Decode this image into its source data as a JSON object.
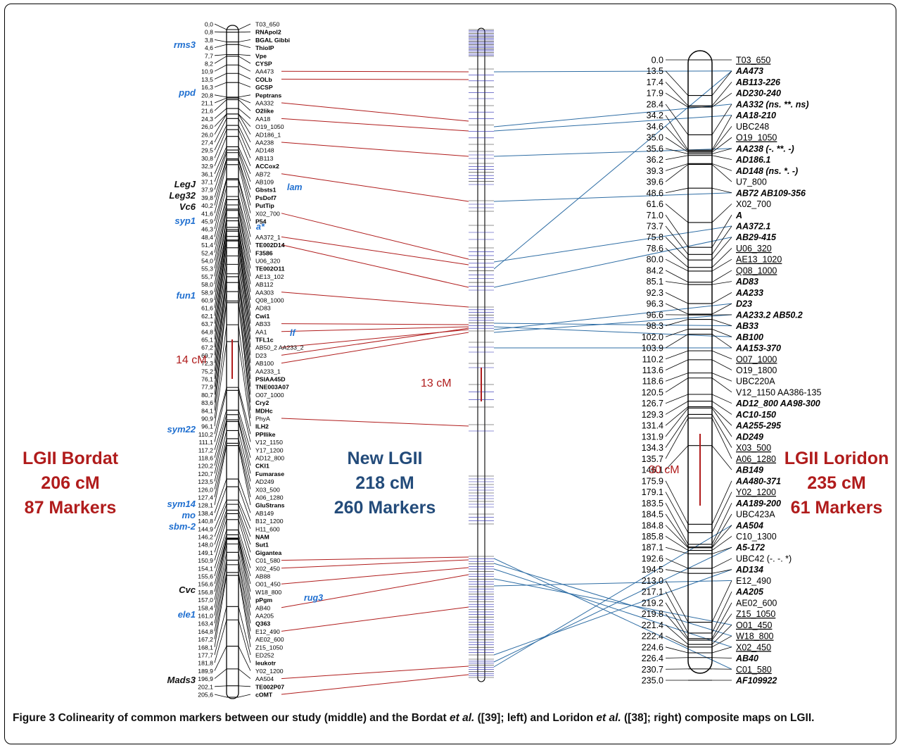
{
  "figure_label": "Figure 3",
  "caption_parts": {
    "a": "Colinearity of common markers between our study (middle) and the Bordat ",
    "a_it": "et al.",
    "b": " ([39]; left) and Loridon ",
    "b_it": "et al.",
    "c": " ([38]; right) composite maps on LGII."
  },
  "titles": {
    "left": [
      "LGII Bordat",
      "206 cM",
      "87 Markers"
    ],
    "middle": [
      "New LGII",
      "218 cM",
      "260 Markers"
    ],
    "right": [
      "LGII Loridon",
      "235 cM",
      "61 Markers"
    ]
  },
  "gaps": {
    "left": "14 cM",
    "middle": "13 cM",
    "right": "30 cM"
  },
  "colors": {
    "red_link": "#b01c1c",
    "blue_link": "#2e6da4",
    "gene": "#1f6fd0",
    "gap": "#b01c1c"
  },
  "bordat": {
    "loci": [
      [
        "0,0",
        "T03_650",
        0
      ],
      [
        "0,8",
        "RNApol2",
        1
      ],
      [
        "3,8",
        "BGAL Gibbi",
        1
      ],
      [
        "4,6",
        "ThiolP",
        1
      ],
      [
        "7,7",
        "Vpe",
        1
      ],
      [
        "8,2",
        "CYSP",
        1
      ],
      [
        "10,9",
        "AA473",
        0
      ],
      [
        "13,5",
        "COLb",
        1
      ],
      [
        "16,3",
        "GCSP",
        1
      ],
      [
        "20,8",
        "Peptrans",
        1
      ],
      [
        "21,1",
        "AA332",
        0
      ],
      [
        "21,6",
        "O2like",
        1
      ],
      [
        "24,3",
        "AA18",
        0
      ],
      [
        "26,0",
        "O19_1050",
        0
      ],
      [
        "26,0",
        "AD186_1",
        0
      ],
      [
        "27,4",
        "AA238",
        0
      ],
      [
        "29,5",
        "AD148",
        0
      ],
      [
        "30,8",
        "AB113",
        0
      ],
      [
        "32,9",
        "ACCox2",
        1
      ],
      [
        "36,1",
        "AB72",
        0
      ],
      [
        "37,1",
        "AB109",
        0
      ],
      [
        "37,9",
        "Gbsts1",
        1
      ],
      [
        "39,8",
        "PsDof7",
        1
      ],
      [
        "40,2",
        "PutTip",
        1
      ],
      [
        "41,6",
        "X02_700",
        0
      ],
      [
        "45,9",
        "P54",
        1
      ],
      [
        "46,3",
        "",
        0
      ],
      [
        "48,4",
        "AA372_1",
        0
      ],
      [
        "51,4",
        "TE002D14",
        1
      ],
      [
        "52,4",
        "F3586",
        1
      ],
      [
        "54,0",
        "U06_320",
        0
      ],
      [
        "55,3",
        "TE002O11",
        1
      ],
      [
        "55,7",
        "AE13_102",
        0
      ],
      [
        "58,0",
        "AB112",
        0
      ],
      [
        "58,9",
        "AA303",
        0
      ],
      [
        "60,9",
        "Q08_1000",
        0
      ],
      [
        "61,6",
        "AD83",
        0
      ],
      [
        "62,1",
        "Cwi1",
        1
      ],
      [
        "63,7",
        "AB33",
        0
      ],
      [
        "64,8",
        "AA1",
        0
      ],
      [
        "65,1",
        "TFL1c",
        1
      ],
      [
        "67,2",
        "AB50_2 AA233_2",
        0
      ],
      [
        "69,7",
        "D23",
        0
      ],
      [
        "72,3",
        "AB100",
        0
      ],
      [
        "75,2",
        "AA233_1",
        0
      ],
      [
        "76,1",
        "PSIAA45D",
        1
      ],
      [
        "77,9",
        "TNE003A07",
        1
      ],
      [
        "80,7",
        "O07_1000",
        0
      ],
      [
        "83,6",
        "Cry2",
        1
      ],
      [
        "84,1",
        "MDHc",
        1
      ],
      [
        "90,9",
        "PhyA",
        0
      ],
      [
        "96,1",
        "ILH2",
        1
      ],
      [
        "110,2",
        "PPIlike",
        1
      ],
      [
        "111,1",
        "V12_1150",
        0
      ],
      [
        "117,2",
        "Y17_1200",
        0
      ],
      [
        "118,6",
        "AD12_800",
        0
      ],
      [
        "120,2",
        "CKI1",
        1
      ],
      [
        "120,7",
        "Fumarase",
        1
      ],
      [
        "123,5",
        "AD249",
        0
      ],
      [
        "126,0",
        "X03_500",
        0
      ],
      [
        "127,4",
        "A06_1280",
        0
      ],
      [
        "128,1",
        "GluStrans",
        1
      ],
      [
        "138,4",
        "AB149",
        0
      ],
      [
        "140,8",
        "B12_1200",
        0
      ],
      [
        "144,9",
        "H11_600",
        0
      ],
      [
        "146,2",
        "NAM",
        1
      ],
      [
        "148,0",
        "Sut1",
        1
      ],
      [
        "149,1",
        "Gigantea",
        1
      ],
      [
        "150,9",
        "C01_580",
        0
      ],
      [
        "154,1",
        "X02_450",
        0
      ],
      [
        "155,6",
        "AB88",
        0
      ],
      [
        "156,6",
        "O01_450",
        0
      ],
      [
        "156,8",
        "W18_800",
        0
      ],
      [
        "157,0",
        "pPgm",
        1
      ],
      [
        "158,4",
        "AB40",
        0
      ],
      [
        "161,0",
        "AA205",
        0
      ],
      [
        "163,4",
        "Q363",
        1
      ],
      [
        "164,8",
        "E12_490",
        0
      ],
      [
        "167,2",
        "AE02_600",
        0
      ],
      [
        "168,1",
        "Z15_1050",
        0
      ],
      [
        "177,7",
        "ED252",
        0
      ],
      [
        "181,8",
        "leukotr",
        1
      ],
      [
        "189,9",
        "Y02_1200",
        0
      ],
      [
        "196,9",
        "AA504",
        0
      ],
      [
        "202,1",
        "TE002P07",
        1
      ],
      [
        "205,6",
        "cOMT",
        1
      ]
    ],
    "genes_blue": [
      [
        "rms3",
        68
      ],
      [
        "ppd",
        136
      ],
      [
        "syp1",
        318
      ],
      [
        "fun1",
        424
      ],
      [
        "sym22",
        614
      ],
      [
        "sym14",
        720
      ],
      [
        "mo",
        736
      ],
      [
        "sbm-2",
        752
      ],
      [
        "ele1",
        877
      ]
    ],
    "genes_black": [
      [
        "LegJ",
        266
      ],
      [
        "Leg32",
        282
      ],
      [
        "Vc6",
        298
      ],
      [
        "Cvc",
        842
      ],
      [
        "Mads3",
        970
      ]
    ],
    "inline_genes": [
      [
        "lam",
        270
      ],
      [
        "a*",
        326
      ],
      [
        "lf",
        477
      ],
      [
        "rug3",
        853
      ]
    ]
  },
  "loridon": {
    "loci": [
      [
        "0.0",
        "T03_650",
        "u"
      ],
      [
        "13.5",
        "AA473",
        "b"
      ],
      [
        "17.4",
        "AB113-226",
        "b"
      ],
      [
        "17.9",
        "AD230-240",
        "b"
      ],
      [
        "28.4",
        "AA332 (ns. **. ns)",
        "b"
      ],
      [
        "34.2",
        "AA18-210",
        "b"
      ],
      [
        "34.6",
        "UBC248",
        "n"
      ],
      [
        "35.0",
        "O19_1050",
        "u"
      ],
      [
        "35.6",
        "AA238 (-. **. -)",
        "b"
      ],
      [
        "36.2",
        "AD186.1",
        "b"
      ],
      [
        "39.3",
        "AD148 (ns. *. -)",
        "b"
      ],
      [
        "39.6",
        "U7_800",
        "n"
      ],
      [
        "48.6",
        "AB72  AB109-356",
        "b"
      ],
      [
        "61.6",
        "X02_700",
        "n"
      ],
      [
        "71.0",
        "A",
        "b"
      ],
      [
        "73.7",
        "AA372.1",
        "b"
      ],
      [
        "75.8",
        "AB29-415",
        "b"
      ],
      [
        "78.6",
        "U06_320",
        "u"
      ],
      [
        "80.0",
        "AE13_1020",
        "u"
      ],
      [
        "84.2",
        "Q08_1000",
        "u"
      ],
      [
        "85.1",
        "AD83",
        "b"
      ],
      [
        "92.3",
        "AA233",
        "b"
      ],
      [
        "96.3",
        "D23",
        "b"
      ],
      [
        "96.6",
        "AA233.2  AB50.2",
        "b"
      ],
      [
        "98.3",
        "AB33",
        "b"
      ],
      [
        "102.0",
        "AB100",
        "b"
      ],
      [
        "103.9",
        "AA153-370",
        "b"
      ],
      [
        "110.2",
        "O07_1000",
        "u"
      ],
      [
        "113.6",
        "O19_1800",
        "n"
      ],
      [
        "118.6",
        "UBC220A",
        "n"
      ],
      [
        "120.5",
        "V12_1150 AA386-135",
        "n"
      ],
      [
        "126.7",
        "AD12_800 AA98-300",
        "b"
      ],
      [
        "129.3",
        "AC10-150",
        "b"
      ],
      [
        "131.4",
        "AA255-295",
        "b"
      ],
      [
        "131.9",
        "AD249",
        "b"
      ],
      [
        "134.3",
        "X03_500",
        "u"
      ],
      [
        "135.7",
        "A06_1280",
        "u"
      ],
      [
        "146.1",
        "AB149",
        "b"
      ],
      [
        "175.9",
        "AA480-371",
        "b"
      ],
      [
        "179.1",
        "Y02_1200",
        "u"
      ],
      [
        "183.5",
        "AA189-200",
        "b"
      ],
      [
        "184.5",
        "UBC423A",
        "n"
      ],
      [
        "184.8",
        "AA504",
        "b"
      ],
      [
        "185.8",
        "C10_1300",
        "n"
      ],
      [
        "187.1",
        "A5-172",
        "b"
      ],
      [
        "192.6",
        "UBC42 (-. -. *)",
        "n"
      ],
      [
        "194.5",
        "AD134",
        "b"
      ],
      [
        "213.0",
        "E12_490",
        "n"
      ],
      [
        "217.1",
        "AA205",
        "b"
      ],
      [
        "219.2",
        "AE02_600",
        "n"
      ],
      [
        "219.8",
        "Z15_1050",
        "u"
      ],
      [
        "221.4",
        "O01_450",
        "u"
      ],
      [
        "222.4",
        "W18_800",
        "u"
      ],
      [
        "224.6",
        "X02_450",
        "u"
      ],
      [
        "226.4",
        "AB40",
        "b"
      ],
      [
        "230.7",
        "C01_580",
        "u"
      ],
      [
        "235.0",
        "AF109922",
        "b"
      ]
    ]
  }
}
